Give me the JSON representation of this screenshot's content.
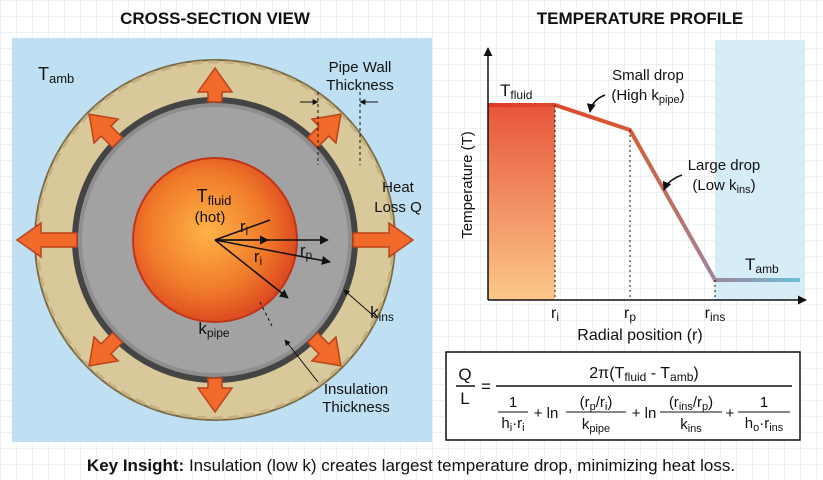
{
  "cross_section": {
    "title": "CROSS-SECTION VIEW",
    "t_amb": [
      "T",
      "amb"
    ],
    "pipe_wall": {
      "line1": "Pipe Wall",
      "line2": "Thickness"
    },
    "heat_loss": {
      "line1": "Heat",
      "line2": "Loss Q"
    },
    "t_fluid": [
      "T",
      "fluid"
    ],
    "hot": "(hot)",
    "r_i_inner": [
      "r",
      "i"
    ],
    "r_i": [
      "r",
      "i"
    ],
    "r_p": [
      "r",
      "p"
    ],
    "k_ins": [
      "k",
      "ins"
    ],
    "k_pipe": [
      "k",
      "pipe"
    ],
    "insulation": {
      "line1": "Insulation",
      "line2": "Thickness"
    }
  },
  "profile": {
    "title": "TEMPERATURE PROFILE",
    "y_label": "Temperature (T)",
    "x_label": "Radial position (r)",
    "t_fluid": [
      "T",
      "fluid"
    ],
    "t_amb": [
      "T",
      "amb"
    ],
    "small_drop": {
      "line1": "Small drop",
      "line2": [
        "(High k",
        "pipe",
        ")"
      ]
    },
    "large_drop": {
      "line1": "Large drop",
      "line2": [
        "(Low k",
        "ins",
        ")"
      ]
    },
    "r_i": [
      "r",
      "i"
    ],
    "r_p": [
      "r",
      "p"
    ],
    "r_ins": [
      "r",
      "ins"
    ]
  },
  "formula": {
    "lhs_num": "Q",
    "lhs_den": "L",
    "equals": "=",
    "numerator": [
      "2π(T",
      "fluid",
      " - T",
      "amb",
      ")"
    ],
    "term1_num": "1",
    "term1_den": [
      "h",
      "i",
      "·r",
      "i"
    ],
    "plus_ln_1": "+ ln",
    "term2_num": [
      "(r",
      "p",
      "/r",
      "i",
      ")"
    ],
    "term2_den": [
      "k",
      "pipe"
    ],
    "plus_ln_2": "+ ln",
    "term3_num": [
      "(r",
      "ins",
      "/r",
      "p",
      ")"
    ],
    "term3_den": [
      "k",
      "ins"
    ],
    "plus": "+",
    "term4_num": "1",
    "term4_den": [
      "h",
      "o",
      "·r",
      "ins"
    ]
  },
  "insight": {
    "label": "Key Insight:",
    "text": " Insulation (low k) creates largest temperature drop, minimizing heat loss."
  }
}
